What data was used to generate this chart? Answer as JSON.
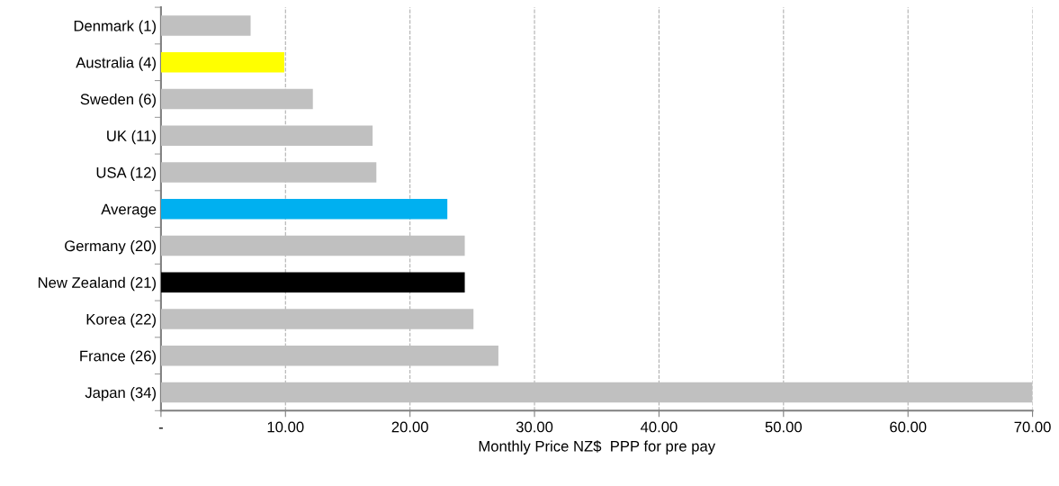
{
  "chart_data": {
    "type": "bar",
    "orientation": "horizontal",
    "categories": [
      "Denmark (1)",
      "Australia (4)",
      "Sweden (6)",
      "UK (11)",
      "USA (12)",
      "Average",
      "Germany (20)",
      "New Zealand (21)",
      "Korea (22)",
      "France (26)",
      "Japan (34)"
    ],
    "values": [
      7.2,
      9.9,
      12.2,
      17.0,
      17.3,
      23.0,
      24.4,
      24.4,
      25.1,
      27.1,
      70.0
    ],
    "colors": [
      "#c0c0c0",
      "#ffff00",
      "#c0c0c0",
      "#c0c0c0",
      "#c0c0c0",
      "#00b0f0",
      "#c0c0c0",
      "#000000",
      "#c0c0c0",
      "#c0c0c0",
      "#c0c0c0"
    ],
    "xlabel": "Monthly Price NZ$  PPP for pre pay",
    "xlim": [
      0,
      70
    ],
    "xticks": [
      {
        "value": 0,
        "label": "-"
      },
      {
        "value": 10,
        "label": "10.00"
      },
      {
        "value": 20,
        "label": "20.00"
      },
      {
        "value": 30,
        "label": "30.00"
      },
      {
        "value": 40,
        "label": "40.00"
      },
      {
        "value": 50,
        "label": "50.00"
      },
      {
        "value": 60,
        "label": "60.00"
      },
      {
        "value": 70,
        "label": "70.00"
      }
    ],
    "grid": "x"
  }
}
